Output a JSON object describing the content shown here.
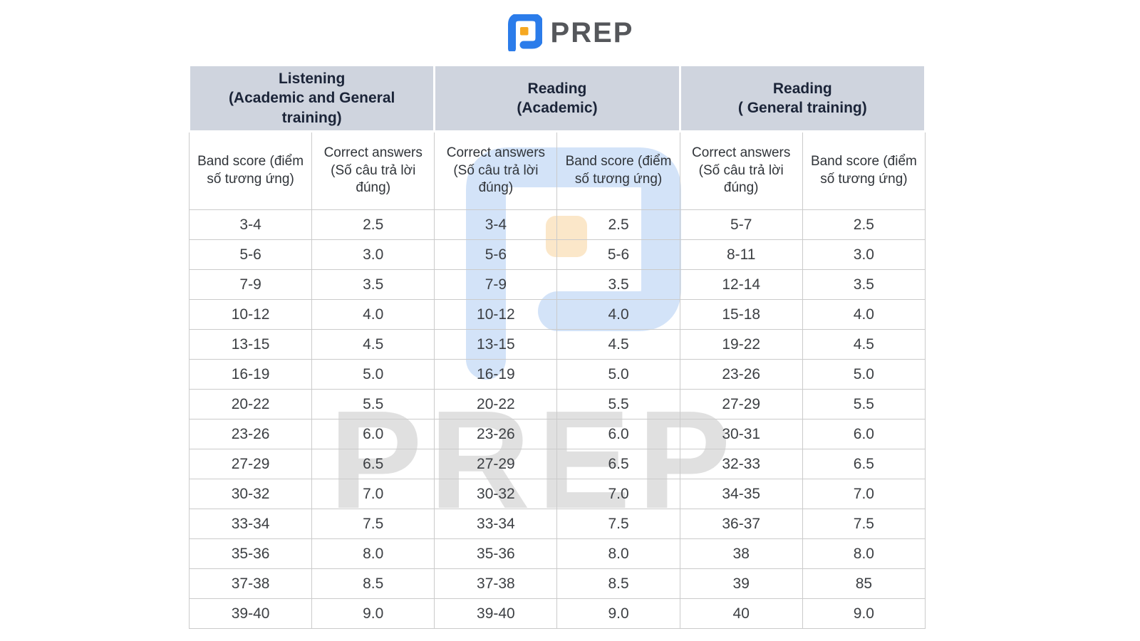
{
  "logo": {
    "text": "PREP"
  },
  "watermark": {
    "text": "PREP"
  },
  "colors": {
    "logo_blue": "#2b7cea",
    "logo_orange": "#f6a821",
    "header_bg": "#cfd4de",
    "header_text": "#1b2438",
    "body_text": "#3c3f43",
    "border": "#cbcbcb",
    "watermark_blue": "#d3e3f8",
    "watermark_orange": "#fbe7c9"
  },
  "table": {
    "groups": [
      {
        "lines": [
          "Listening",
          "(Academic and General",
          "training)"
        ]
      },
      {
        "lines": [
          "Reading",
          "(Academic)",
          ""
        ]
      },
      {
        "lines": [
          "Reading",
          "( General training)",
          ""
        ]
      }
    ],
    "subheaders": [
      "Band score (điểm số tương ứng)",
      "Correct answers (Số câu trả lời đúng)",
      "Correct answers (Số câu trả lời đúng)",
      "Band score (điểm số tương ứng)",
      "Correct answers (Số câu trả lời đúng)",
      "Band score (điểm số tương ứng)"
    ],
    "rows": [
      [
        "3-4",
        "2.5",
        "3-4",
        "2.5",
        "5-7",
        "2.5"
      ],
      [
        "5-6",
        "3.0",
        "5-6",
        "5-6",
        "8-11",
        "3.0"
      ],
      [
        "7-9",
        "3.5",
        "7-9",
        "3.5",
        "12-14",
        "3.5"
      ],
      [
        "10-12",
        "4.0",
        "10-12",
        "4.0",
        "15-18",
        "4.0"
      ],
      [
        "13-15",
        "4.5",
        "13-15",
        "4.5",
        "19-22",
        "4.5"
      ],
      [
        "16-19",
        "5.0",
        "16-19",
        "5.0",
        "23-26",
        "5.0"
      ],
      [
        "20-22",
        "5.5",
        "20-22",
        "5.5",
        "27-29",
        "5.5"
      ],
      [
        "23-26",
        "6.0",
        "23-26",
        "6.0",
        "30-31",
        "6.0"
      ],
      [
        "27-29",
        "6.5",
        "27-29",
        "6.5",
        "32-33",
        "6.5"
      ],
      [
        "30-32",
        "7.0",
        "30-32",
        "7.0",
        "34-35",
        "7.0"
      ],
      [
        "33-34",
        "7.5",
        "33-34",
        "7.5",
        "36-37",
        "7.5"
      ],
      [
        "35-36",
        "8.0",
        "35-36",
        "8.0",
        "38",
        "8.0"
      ],
      [
        "37-38",
        "8.5",
        "37-38",
        "8.5",
        "39",
        "85"
      ],
      [
        "39-40",
        "9.0",
        "39-40",
        "9.0",
        "40",
        "9.0"
      ]
    ]
  }
}
